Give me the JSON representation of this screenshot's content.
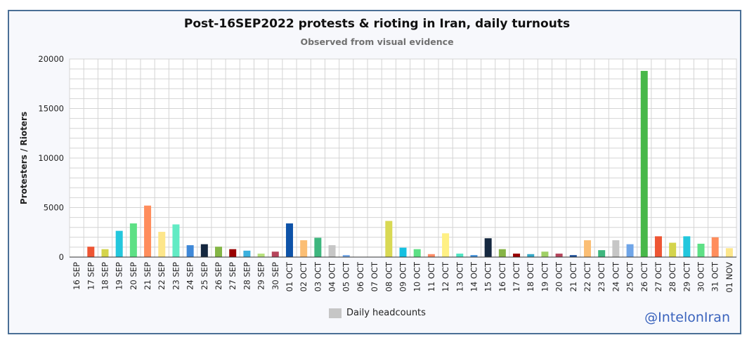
{
  "chart_data": {
    "type": "bar",
    "title": "Post-16SEP2022 protests & rioting in Iran, daily turnouts",
    "subtitle": "Observed from visual evidence",
    "ylabel": "Protesters / Rioters",
    "xlabel": "",
    "ylim": [
      0,
      20000
    ],
    "yticks": [
      "0",
      "5000",
      "10000",
      "15000",
      "20000"
    ],
    "grid": true,
    "legend": {
      "label": "Daily headcounts",
      "color": "#c6c6c6",
      "position": "bottom-center"
    },
    "categories": [
      "16 SEP",
      "17 SEP",
      "18 SEP",
      "19 SEP",
      "20 SEP",
      "21 SEP",
      "22 SEP",
      "23 SEP",
      "24 SEP",
      "25 SEP",
      "26 SEP",
      "27 SEP",
      "28 SEP",
      "29 SEP",
      "30 SEP",
      "01 OCT",
      "02 OCT",
      "03 OCT",
      "04 OCT",
      "05 OCT",
      "06 OCT",
      "07 OCT",
      "08 OCT",
      "09 OCT",
      "10 OCT",
      "11 OCT",
      "12 OCT",
      "13 OCT",
      "14 OCT",
      "15 OCT",
      "16 OCT",
      "17 OCT",
      "18 OCT",
      "19 OCT",
      "20 OCT",
      "21 OCT",
      "22 OCT",
      "23 OCT",
      "24 OCT",
      "25 OCT",
      "26 OCT",
      "27 OCT",
      "28 OCT",
      "29 OCT",
      "30 OCT",
      "31 OCT",
      "01 NOV"
    ],
    "values": [
      0,
      1050,
      800,
      2650,
      3400,
      5200,
      2550,
      3300,
      1200,
      1300,
      1050,
      800,
      650,
      350,
      550,
      3400,
      1700,
      1950,
      1200,
      200,
      0,
      0,
      3650,
      950,
      800,
      300,
      2400,
      350,
      200,
      1900,
      800,
      350,
      300,
      550,
      350,
      200,
      1700,
      700,
      1700,
      1300,
      18800,
      2100,
      1450,
      2100,
      1350,
      2000,
      900
    ],
    "colors": [
      "#4ab0d0",
      "#ee5533",
      "#d4d44c",
      "#22c7dd",
      "#5de085",
      "#ff8d5c",
      "#fde68a",
      "#62ebc4",
      "#3e88d8",
      "#14273f",
      "#84b646",
      "#990000",
      "#3bb0de",
      "#b7e27c",
      "#b5445b",
      "#0d52a8",
      "#fbbe74",
      "#3eb67e",
      "#c6c6c6",
      "#6fa5e8",
      "#9cc3e8",
      "#a6a6a6",
      "#d9d953",
      "#14c0e1",
      "#5de085",
      "#ff8c66",
      "#fff084",
      "#4fe6c3",
      "#3e8ed8",
      "#14273f",
      "#86b446",
      "#990000",
      "#34a9c8",
      "#a0d066",
      "#b5445b",
      "#1b4f9a",
      "#fbbe74",
      "#3eb67e",
      "#c6c6c6",
      "#6fa5e8",
      "#48b84a",
      "#ee5533",
      "#d4d44c",
      "#22c7dd",
      "#5de085",
      "#ff8d5c",
      "#fde68a"
    ]
  },
  "watermark": "@IntelonIran"
}
